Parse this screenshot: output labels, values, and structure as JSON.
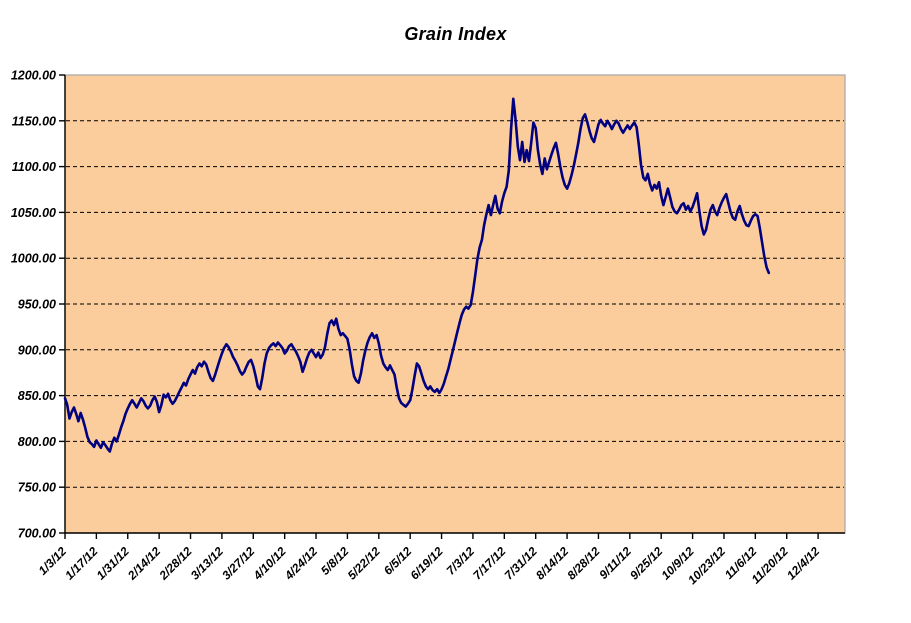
{
  "chart_data": {
    "type": "line",
    "title": "Grain Index",
    "legend": "none",
    "grid": "horizontal-dashed",
    "y_axis": {
      "min": 700,
      "max": 1200,
      "step": 50,
      "tick_labels": [
        "700.00",
        "750.00",
        "800.00",
        "850.00",
        "900.00",
        "950.00",
        "1000.00",
        "1050.00",
        "1100.00",
        "1150.00",
        "1200.00"
      ]
    },
    "x_axis": {
      "tick_labels": [
        "1/3/12",
        "1/17/12",
        "1/31/12",
        "2/14/12",
        "2/28/12",
        "3/13/12",
        "3/27/12",
        "4/10/12",
        "4/24/12",
        "5/8/12",
        "5/22/12",
        "6/5/12",
        "6/19/12",
        "7/3/12",
        "7/17/12",
        "7/31/12",
        "8/14/12",
        "8/28/12",
        "9/11/12",
        "9/25/12",
        "10/9/12",
        "10/23/12",
        "11/6/12",
        "11/20/12",
        "12/4/12"
      ],
      "days_per_tick": 14,
      "axis_extends_days_past_last_tick": 12
    },
    "colors": {
      "line": "#000080",
      "plot_background": "#FCCD9C",
      "gridline": "#000000",
      "plot_border": "#A6A6A6",
      "axis": "#000000",
      "text": "#000000"
    },
    "series": [
      {
        "name": "Grain Index",
        "x_unit": "days_since_first_tick",
        "points": [
          [
            0,
            847
          ],
          [
            1,
            840
          ],
          [
            2,
            825
          ],
          [
            3,
            832
          ],
          [
            4,
            837
          ],
          [
            5,
            830
          ],
          [
            6,
            822
          ],
          [
            7,
            831
          ],
          [
            8,
            824
          ],
          [
            9,
            815
          ],
          [
            10,
            805
          ],
          [
            11,
            799
          ],
          [
            12,
            797
          ],
          [
            13,
            794
          ],
          [
            14,
            801
          ],
          [
            15,
            797
          ],
          [
            16,
            793
          ],
          [
            17,
            799
          ],
          [
            18,
            796
          ],
          [
            19,
            792
          ],
          [
            20,
            789
          ],
          [
            21,
            798
          ],
          [
            22,
            804
          ],
          [
            23,
            800
          ],
          [
            24,
            807
          ],
          [
            25,
            815
          ],
          [
            26,
            822
          ],
          [
            27,
            830
          ],
          [
            28,
            836
          ],
          [
            29,
            841
          ],
          [
            30,
            845
          ],
          [
            31,
            841
          ],
          [
            32,
            837
          ],
          [
            33,
            842
          ],
          [
            34,
            847
          ],
          [
            35,
            844
          ],
          [
            36,
            839
          ],
          [
            37,
            836
          ],
          [
            38,
            839
          ],
          [
            39,
            845
          ],
          [
            40,
            849
          ],
          [
            41,
            843
          ],
          [
            42,
            832
          ],
          [
            43,
            840
          ],
          [
            44,
            851
          ],
          [
            45,
            848
          ],
          [
            46,
            852
          ],
          [
            47,
            845
          ],
          [
            48,
            841
          ],
          [
            49,
            844
          ],
          [
            50,
            849
          ],
          [
            51,
            854
          ],
          [
            52,
            859
          ],
          [
            53,
            864
          ],
          [
            54,
            861
          ],
          [
            55,
            868
          ],
          [
            56,
            873
          ],
          [
            57,
            878
          ],
          [
            58,
            874
          ],
          [
            59,
            881
          ],
          [
            60,
            885
          ],
          [
            61,
            882
          ],
          [
            62,
            887
          ],
          [
            63,
            884
          ],
          [
            64,
            876
          ],
          [
            65,
            869
          ],
          [
            66,
            866
          ],
          [
            67,
            873
          ],
          [
            68,
            881
          ],
          [
            69,
            889
          ],
          [
            70,
            896
          ],
          [
            71,
            902
          ],
          [
            72,
            906
          ],
          [
            73,
            903
          ],
          [
            74,
            898
          ],
          [
            75,
            892
          ],
          [
            76,
            888
          ],
          [
            77,
            883
          ],
          [
            78,
            877
          ],
          [
            79,
            873
          ],
          [
            80,
            876
          ],
          [
            81,
            882
          ],
          [
            82,
            887
          ],
          [
            83,
            889
          ],
          [
            84,
            882
          ],
          [
            85,
            872
          ],
          [
            86,
            860
          ],
          [
            87,
            857
          ],
          [
            88,
            869
          ],
          [
            89,
            885
          ],
          [
            90,
            896
          ],
          [
            91,
            902
          ],
          [
            92,
            905
          ],
          [
            93,
            907
          ],
          [
            94,
            904
          ],
          [
            95,
            908
          ],
          [
            96,
            905
          ],
          [
            97,
            902
          ],
          [
            98,
            896
          ],
          [
            99,
            899
          ],
          [
            100,
            904
          ],
          [
            101,
            906
          ],
          [
            102,
            902
          ],
          [
            103,
            898
          ],
          [
            104,
            893
          ],
          [
            105,
            887
          ],
          [
            106,
            876
          ],
          [
            107,
            883
          ],
          [
            108,
            891
          ],
          [
            109,
            897
          ],
          [
            110,
            900
          ],
          [
            111,
            896
          ],
          [
            112,
            892
          ],
          [
            113,
            897
          ],
          [
            114,
            891
          ],
          [
            115,
            895
          ],
          [
            116,
            903
          ],
          [
            117,
            917
          ],
          [
            118,
            929
          ],
          [
            119,
            932
          ],
          [
            120,
            927
          ],
          [
            121,
            934
          ],
          [
            122,
            923
          ],
          [
            123,
            916
          ],
          [
            124,
            918
          ],
          [
            125,
            915
          ],
          [
            126,
            912
          ],
          [
            127,
            900
          ],
          [
            128,
            884
          ],
          [
            129,
            871
          ],
          [
            130,
            866
          ],
          [
            131,
            864
          ],
          [
            132,
            874
          ],
          [
            133,
            888
          ],
          [
            134,
            899
          ],
          [
            135,
            908
          ],
          [
            136,
            914
          ],
          [
            137,
            918
          ],
          [
            138,
            913
          ],
          [
            139,
            916
          ],
          [
            140,
            907
          ],
          [
            141,
            894
          ],
          [
            142,
            885
          ],
          [
            143,
            881
          ],
          [
            144,
            878
          ],
          [
            145,
            883
          ],
          [
            146,
            878
          ],
          [
            147,
            873
          ],
          [
            148,
            859
          ],
          [
            149,
            847
          ],
          [
            150,
            842
          ],
          [
            151,
            840
          ],
          [
            152,
            838
          ],
          [
            153,
            841
          ],
          [
            154,
            845
          ],
          [
            155,
            857
          ],
          [
            156,
            872
          ],
          [
            157,
            885
          ],
          [
            158,
            882
          ],
          [
            159,
            874
          ],
          [
            160,
            866
          ],
          [
            161,
            860
          ],
          [
            162,
            857
          ],
          [
            163,
            860
          ],
          [
            164,
            856
          ],
          [
            165,
            854
          ],
          [
            166,
            857
          ],
          [
            167,
            853
          ],
          [
            168,
            857
          ],
          [
            169,
            863
          ],
          [
            170,
            871
          ],
          [
            171,
            879
          ],
          [
            172,
            889
          ],
          [
            173,
            899
          ],
          [
            174,
            909
          ],
          [
            175,
            919
          ],
          [
            176,
            929
          ],
          [
            177,
            938
          ],
          [
            178,
            944
          ],
          [
            179,
            947
          ],
          [
            180,
            945
          ],
          [
            181,
            949
          ],
          [
            182,
            963
          ],
          [
            183,
            981
          ],
          [
            184,
            999
          ],
          [
            185,
            1012
          ],
          [
            186,
            1020
          ],
          [
            187,
            1036
          ],
          [
            188,
            1048
          ],
          [
            189,
            1058
          ],
          [
            190,
            1047
          ],
          [
            191,
            1058
          ],
          [
            192,
            1068
          ],
          [
            193,
            1054
          ],
          [
            194,
            1049
          ],
          [
            195,
            1062
          ],
          [
            196,
            1071
          ],
          [
            197,
            1078
          ],
          [
            198,
            1096
          ],
          [
            199,
            1140
          ],
          [
            200,
            1174
          ],
          [
            201,
            1152
          ],
          [
            202,
            1122
          ],
          [
            203,
            1107
          ],
          [
            204,
            1127
          ],
          [
            205,
            1105
          ],
          [
            206,
            1118
          ],
          [
            207,
            1106
          ],
          [
            208,
            1126
          ],
          [
            209,
            1148
          ],
          [
            210,
            1142
          ],
          [
            211,
            1118
          ],
          [
            212,
            1102
          ],
          [
            213,
            1092
          ],
          [
            214,
            1109
          ],
          [
            215,
            1097
          ],
          [
            216,
            1105
          ],
          [
            217,
            1113
          ],
          [
            218,
            1120
          ],
          [
            219,
            1126
          ],
          [
            220,
            1114
          ],
          [
            221,
            1100
          ],
          [
            222,
            1088
          ],
          [
            223,
            1080
          ],
          [
            224,
            1076
          ],
          [
            225,
            1082
          ],
          [
            226,
            1091
          ],
          [
            227,
            1101
          ],
          [
            228,
            1113
          ],
          [
            229,
            1126
          ],
          [
            230,
            1141
          ],
          [
            231,
            1153
          ],
          [
            232,
            1157
          ],
          [
            233,
            1149
          ],
          [
            234,
            1139
          ],
          [
            235,
            1131
          ],
          [
            236,
            1127
          ],
          [
            237,
            1136
          ],
          [
            238,
            1146
          ],
          [
            239,
            1151
          ],
          [
            240,
            1147
          ],
          [
            241,
            1144
          ],
          [
            242,
            1150
          ],
          [
            243,
            1146
          ],
          [
            244,
            1141
          ],
          [
            245,
            1146
          ],
          [
            246,
            1150
          ],
          [
            247,
            1147
          ],
          [
            248,
            1141
          ],
          [
            249,
            1137
          ],
          [
            250,
            1141
          ],
          [
            251,
            1145
          ],
          [
            252,
            1141
          ],
          [
            253,
            1145
          ],
          [
            254,
            1148
          ],
          [
            255,
            1143
          ],
          [
            256,
            1124
          ],
          [
            257,
            1102
          ],
          [
            258,
            1088
          ],
          [
            259,
            1085
          ],
          [
            260,
            1092
          ],
          [
            261,
            1081
          ],
          [
            262,
            1074
          ],
          [
            263,
            1080
          ],
          [
            264,
            1076
          ],
          [
            265,
            1083
          ],
          [
            266,
            1068
          ],
          [
            267,
            1058
          ],
          [
            268,
            1067
          ],
          [
            269,
            1076
          ],
          [
            270,
            1066
          ],
          [
            271,
            1056
          ],
          [
            272,
            1051
          ],
          [
            273,
            1049
          ],
          [
            274,
            1053
          ],
          [
            275,
            1058
          ],
          [
            276,
            1060
          ],
          [
            277,
            1053
          ],
          [
            278,
            1057
          ],
          [
            279,
            1051
          ],
          [
            280,
            1056
          ],
          [
            281,
            1063
          ],
          [
            282,
            1071
          ],
          [
            283,
            1052
          ],
          [
            284,
            1035
          ],
          [
            285,
            1026
          ],
          [
            286,
            1031
          ],
          [
            287,
            1043
          ],
          [
            288,
            1053
          ],
          [
            289,
            1058
          ],
          [
            290,
            1051
          ],
          [
            291,
            1047
          ],
          [
            292,
            1055
          ],
          [
            293,
            1061
          ],
          [
            294,
            1066
          ],
          [
            295,
            1070
          ],
          [
            296,
            1060
          ],
          [
            297,
            1050
          ],
          [
            298,
            1044
          ],
          [
            299,
            1042
          ],
          [
            300,
            1051
          ],
          [
            301,
            1057
          ],
          [
            302,
            1048
          ],
          [
            303,
            1041
          ],
          [
            304,
            1036
          ],
          [
            305,
            1035
          ],
          [
            306,
            1041
          ],
          [
            307,
            1046
          ],
          [
            308,
            1048
          ],
          [
            309,
            1046
          ],
          [
            310,
            1033
          ],
          [
            311,
            1017
          ],
          [
            312,
            1002
          ],
          [
            313,
            990
          ],
          [
            314,
            984
          ]
        ]
      }
    ]
  }
}
